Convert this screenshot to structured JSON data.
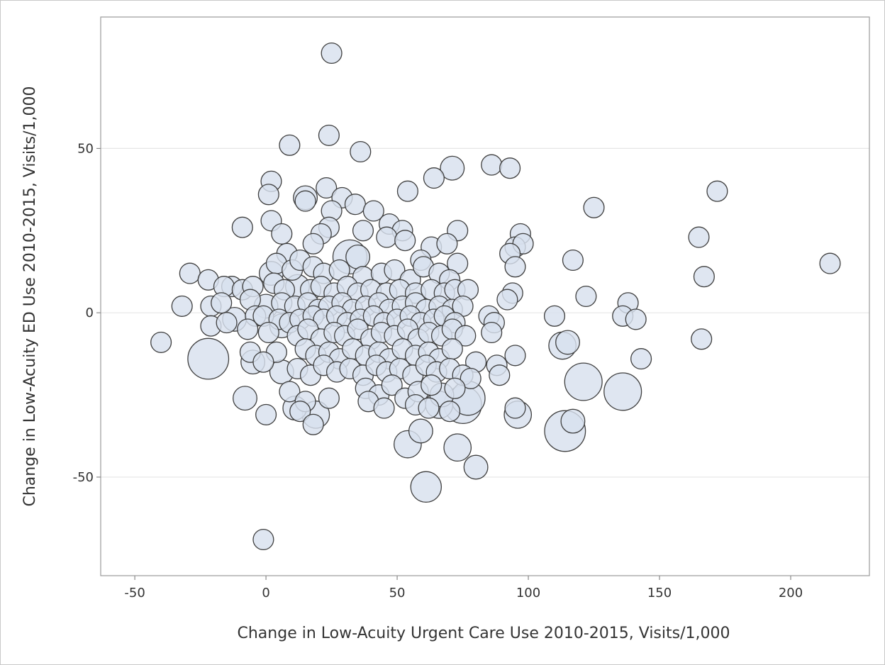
{
  "chart_data": {
    "type": "scatter",
    "xlabel": "Change in Low-Acuity Urgent Care Use 2010-2015, Visits/1,000",
    "ylabel": "Change in Low-Acuity ED Use 2010-2015, Visits/1,000",
    "xlim": [
      -63,
      230
    ],
    "ylim": [
      -80,
      90
    ],
    "xticks": [
      -50,
      0,
      50,
      100,
      150,
      200
    ],
    "yticks": [
      -50,
      0,
      50
    ],
    "xtick_labels": [
      "-50",
      "0",
      "50",
      "100",
      "150",
      "200"
    ],
    "ytick_labels": [
      "-50",
      "0",
      "50"
    ],
    "grid": "horizontal",
    "colors": {
      "fill": "#d8e1ee",
      "stroke": "#3f3f3f"
    },
    "points": [
      [
        25,
        79,
        1.2
      ],
      [
        24,
        54,
        1.2
      ],
      [
        9,
        51,
        1.2
      ],
      [
        36,
        49,
        1.2
      ],
      [
        71,
        44,
        1.4
      ],
      [
        86,
        45,
        1.2
      ],
      [
        93,
        44,
        1.2
      ],
      [
        64,
        41,
        1.2
      ],
      [
        2,
        40,
        1.2
      ],
      [
        23,
        38,
        1.2
      ],
      [
        1,
        36,
        1.2
      ],
      [
        54,
        37,
        1.2
      ],
      [
        15,
        35,
        1.4
      ],
      [
        15,
        34,
        1.2
      ],
      [
        29,
        35,
        1.2
      ],
      [
        34,
        33,
        1.2
      ],
      [
        172,
        37,
        1.2
      ],
      [
        125,
        32,
        1.2
      ],
      [
        25,
        31,
        1.2
      ],
      [
        41,
        31,
        1.2
      ],
      [
        2,
        28,
        1.2
      ],
      [
        -9,
        26,
        1.2
      ],
      [
        6,
        24,
        1.2
      ],
      [
        24,
        26,
        1.2
      ],
      [
        37,
        25,
        1.2
      ],
      [
        47,
        27,
        1.2
      ],
      [
        52,
        25,
        1.2
      ],
      [
        73,
        25,
        1.2
      ],
      [
        97,
        24,
        1.2
      ],
      [
        165,
        23,
        1.2
      ],
      [
        21,
        24,
        1.2
      ],
      [
        18,
        21,
        1.2
      ],
      [
        46,
        23,
        1.2
      ],
      [
        53,
        22,
        1.2
      ],
      [
        63,
        20,
        1.2
      ],
      [
        69,
        21,
        1.2
      ],
      [
        95,
        20,
        1.2
      ],
      [
        98,
        21,
        1.2
      ],
      [
        8,
        18,
        1.2
      ],
      [
        32,
        17,
        2.0
      ],
      [
        35,
        17,
        1.4
      ],
      [
        59,
        16,
        1.2
      ],
      [
        73,
        15,
        1.2
      ],
      [
        93,
        18,
        1.2
      ],
      [
        95,
        14,
        1.2
      ],
      [
        117,
        16,
        1.2
      ],
      [
        215,
        15,
        1.2
      ],
      [
        -29,
        12,
        1.2
      ],
      [
        -22,
        10,
        1.2
      ],
      [
        -13,
        8,
        1.2
      ],
      [
        -16,
        8,
        1.2
      ],
      [
        -9,
        7,
        1.2
      ],
      [
        -5,
        8,
        1.2
      ],
      [
        2,
        12,
        1.4
      ],
      [
        4,
        15,
        1.2
      ],
      [
        10,
        13,
        1.2
      ],
      [
        13,
        16,
        1.2
      ],
      [
        18,
        14,
        1.2
      ],
      [
        22,
        12,
        1.2
      ],
      [
        28,
        13,
        1.2
      ],
      [
        37,
        11,
        1.2
      ],
      [
        44,
        12,
        1.2
      ],
      [
        49,
        13,
        1.2
      ],
      [
        55,
        10,
        1.2
      ],
      [
        60,
        14,
        1.2
      ],
      [
        66,
        12,
        1.2
      ],
      [
        70,
        10,
        1.2
      ],
      [
        3,
        9,
        1.2
      ],
      [
        7,
        7,
        1.2
      ],
      [
        12,
        8,
        1.4
      ],
      [
        17,
        7,
        1.2
      ],
      [
        21,
        8,
        1.2
      ],
      [
        26,
        6,
        1.2
      ],
      [
        31,
        8,
        1.2
      ],
      [
        35,
        6,
        1.2
      ],
      [
        40,
        7,
        1.2
      ],
      [
        46,
        6,
        1.2
      ],
      [
        51,
        7,
        1.2
      ],
      [
        57,
        6,
        1.2
      ],
      [
        63,
        7,
        1.2
      ],
      [
        68,
        6,
        1.2
      ],
      [
        72,
        7,
        1.2
      ],
      [
        77,
        7,
        1.2
      ],
      [
        94,
        6,
        1.2
      ],
      [
        167,
        11,
        1.2
      ],
      [
        122,
        5,
        1.2
      ],
      [
        138,
        3,
        1.2
      ],
      [
        92,
        4,
        1.2
      ],
      [
        -32,
        2,
        1.2
      ],
      [
        -21,
        2,
        1.2
      ],
      [
        -17,
        3,
        1.2
      ],
      [
        -6,
        4,
        1.2
      ],
      [
        0,
        2,
        1.4
      ],
      [
        6,
        3,
        1.2
      ],
      [
        11,
        2,
        1.2
      ],
      [
        16,
        3,
        1.2
      ],
      [
        20,
        1,
        1.2
      ],
      [
        24,
        2,
        1.2
      ],
      [
        29,
        3,
        1.2
      ],
      [
        33,
        1,
        1.2
      ],
      [
        38,
        2,
        1.2
      ],
      [
        43,
        3,
        1.2
      ],
      [
        47,
        1,
        1.2
      ],
      [
        52,
        2,
        1.2
      ],
      [
        57,
        3,
        1.2
      ],
      [
        61,
        1,
        1.2
      ],
      [
        66,
        2,
        1.2
      ],
      [
        71,
        1,
        1.2
      ],
      [
        75,
        2,
        1.2
      ],
      [
        -12,
        -2,
        1.4
      ],
      [
        -4,
        -1,
        1.2
      ],
      [
        -1,
        -1,
        1.2
      ],
      [
        5,
        -2,
        1.2
      ],
      [
        9,
        -3,
        1.2
      ],
      [
        13,
        -2,
        1.2
      ],
      [
        18,
        -1,
        1.2
      ],
      [
        22,
        -2,
        1.2
      ],
      [
        27,
        -1,
        1.2
      ],
      [
        31,
        -3,
        1.2
      ],
      [
        36,
        -2,
        1.2
      ],
      [
        41,
        -1,
        1.2
      ],
      [
        45,
        -3,
        1.2
      ],
      [
        50,
        -2,
        1.2
      ],
      [
        55,
        -1,
        1.2
      ],
      [
        59,
        -3,
        1.2
      ],
      [
        64,
        -2,
        1.2
      ],
      [
        68,
        -1,
        1.2
      ],
      [
        72,
        -3,
        1.2
      ],
      [
        85,
        -1,
        1.2
      ],
      [
        87,
        -3,
        1.2
      ],
      [
        110,
        -1,
        1.2
      ],
      [
        136,
        -1,
        1.2
      ],
      [
        141,
        -2,
        1.2
      ],
      [
        -21,
        -4,
        1.2
      ],
      [
        -15,
        -3,
        1.2
      ],
      [
        -7,
        -5,
        1.2
      ],
      [
        1,
        -6,
        1.2
      ],
      [
        6,
        -4,
        1.4
      ],
      [
        12,
        -7,
        1.2
      ],
      [
        16,
        -5,
        1.2
      ],
      [
        21,
        -8,
        1.2
      ],
      [
        26,
        -6,
        1.2
      ],
      [
        30,
        -7,
        1.2
      ],
      [
        35,
        -5,
        1.2
      ],
      [
        40,
        -8,
        1.2
      ],
      [
        44,
        -6,
        1.2
      ],
      [
        49,
        -7,
        1.2
      ],
      [
        54,
        -5,
        1.2
      ],
      [
        58,
        -8,
        1.2
      ],
      [
        62,
        -6,
        1.2
      ],
      [
        67,
        -7,
        1.2
      ],
      [
        71,
        -5,
        1.2
      ],
      [
        76,
        -7,
        1.2
      ],
      [
        86,
        -6,
        1.2
      ],
      [
        -40,
        -9,
        1.2
      ],
      [
        166,
        -8,
        1.2
      ],
      [
        113,
        -10,
        1.6
      ],
      [
        115,
        -9,
        1.4
      ],
      [
        -6,
        -12,
        1.2
      ],
      [
        4,
        -12,
        1.2
      ],
      [
        15,
        -11,
        1.2
      ],
      [
        19,
        -13,
        1.2
      ],
      [
        24,
        -12,
        1.2
      ],
      [
        28,
        -14,
        1.2
      ],
      [
        33,
        -11,
        1.2
      ],
      [
        38,
        -13,
        1.2
      ],
      [
        43,
        -12,
        1.2
      ],
      [
        47,
        -14,
        1.2
      ],
      [
        52,
        -11,
        1.2
      ],
      [
        57,
        -13,
        1.2
      ],
      [
        62,
        -12,
        1.2
      ],
      [
        66,
        -14,
        1.2
      ],
      [
        71,
        -11,
        1.2
      ],
      [
        -22,
        -14,
        2.4
      ],
      [
        -5,
        -15,
        1.4
      ],
      [
        -1,
        -15,
        1.2
      ],
      [
        80,
        -15,
        1.2
      ],
      [
        88,
        -16,
        1.2
      ],
      [
        95,
        -13,
        1.2
      ],
      [
        143,
        -14,
        1.2
      ],
      [
        6,
        -18,
        1.4
      ],
      [
        12,
        -17,
        1.2
      ],
      [
        17,
        -19,
        1.2
      ],
      [
        22,
        -16,
        1.2
      ],
      [
        27,
        -18,
        1.2
      ],
      [
        32,
        -17,
        1.2
      ],
      [
        37,
        -19,
        1.2
      ],
      [
        42,
        -16,
        1.2
      ],
      [
        46,
        -18,
        1.2
      ],
      [
        51,
        -17,
        1.2
      ],
      [
        56,
        -19,
        1.2
      ],
      [
        61,
        -16,
        1.2
      ],
      [
        65,
        -18,
        1.2
      ],
      [
        70,
        -17,
        1.2
      ],
      [
        75,
        -19,
        1.2
      ],
      [
        78,
        -20,
        1.2
      ],
      [
        89,
        -19,
        1.2
      ],
      [
        121,
        -21,
        2.2
      ],
      [
        136,
        -24,
        2.2
      ],
      [
        -8,
        -26,
        1.4
      ],
      [
        9,
        -24,
        1.2
      ],
      [
        15,
        -27,
        1.2
      ],
      [
        24,
        -26,
        1.2
      ],
      [
        38,
        -23,
        1.2
      ],
      [
        43,
        -25,
        1.2
      ],
      [
        48,
        -22,
        1.2
      ],
      [
        53,
        -26,
        1.2
      ],
      [
        58,
        -24,
        1.2
      ],
      [
        63,
        -22,
        1.2
      ],
      [
        67,
        -25,
        1.4
      ],
      [
        72,
        -23,
        1.2
      ],
      [
        77,
        -26,
        2.0
      ],
      [
        39,
        -27,
        1.2
      ],
      [
        45,
        -29,
        1.2
      ],
      [
        57,
        -28,
        1.2
      ],
      [
        62,
        -29,
        1.2
      ],
      [
        66,
        -28,
        1.6
      ],
      [
        70,
        -30,
        1.2
      ],
      [
        75,
        -28,
        2.2
      ],
      [
        11,
        -29,
        1.4
      ],
      [
        13,
        -30,
        1.2
      ],
      [
        19,
        -31,
        1.6
      ],
      [
        0,
        -31,
        1.2
      ],
      [
        18,
        -34,
        1.2
      ],
      [
        95,
        -29,
        1.2
      ],
      [
        96,
        -31,
        1.6
      ],
      [
        114,
        -36,
        2.4
      ],
      [
        117,
        -33,
        1.4
      ],
      [
        54,
        -40,
        1.6
      ],
      [
        59,
        -36,
        1.4
      ],
      [
        73,
        -41,
        1.6
      ],
      [
        80,
        -47,
        1.4
      ],
      [
        61,
        -53,
        1.8
      ],
      [
        -1,
        -69,
        1.2
      ]
    ]
  }
}
